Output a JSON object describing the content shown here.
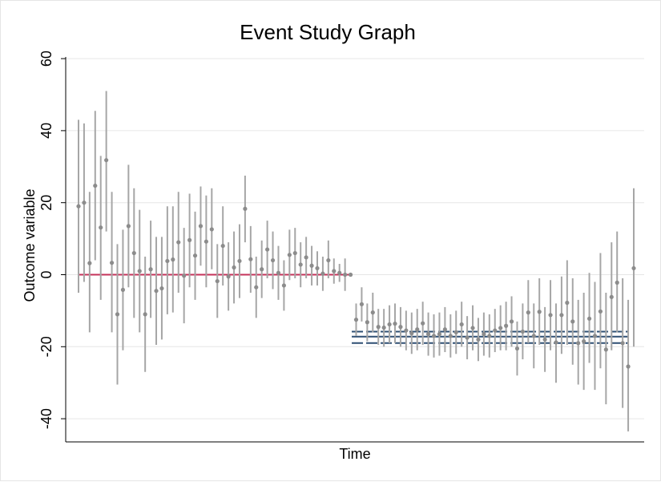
{
  "chart_data": {
    "type": "scatter",
    "title": "Event Study Graph",
    "xlabel": "Time",
    "ylabel": "Outcome variable",
    "ylim": [
      -46,
      62
    ],
    "yticks": [
      60,
      40,
      20,
      0,
      -20,
      -40
    ],
    "xtick_labels_shown": false,
    "grid": true,
    "legend": "none",
    "colors": {
      "points": "#8c8c8c",
      "ci": "#a6a6a6",
      "pre_line": "#c4325a",
      "post_bands": "#2e4f73",
      "grid": "#e6e6e6"
    },
    "pre_reference_line": {
      "y": 0,
      "x_from": 1,
      "x_to": 50
    },
    "post_average_lines": {
      "estimate": -17.2,
      "ci": [
        -19.0,
        -15.8
      ],
      "x_from": 50.5,
      "x_to": 101
    },
    "series": [
      {
        "points": [
          {
            "x": 1,
            "y": 19.0,
            "lo": -5,
            "hi": 43
          },
          {
            "x": 2,
            "y": 20.0,
            "lo": -2,
            "hi": 42
          },
          {
            "x": 3,
            "y": 3.2,
            "lo": -16,
            "hi": 23
          },
          {
            "x": 4,
            "y": 24.7,
            "lo": 4,
            "hi": 45.5
          },
          {
            "x": 5,
            "y": 13.1,
            "lo": -7,
            "hi": 33
          },
          {
            "x": 6,
            "y": 31.8,
            "lo": 12,
            "hi": 51
          },
          {
            "x": 7,
            "y": 3.3,
            "lo": -16,
            "hi": 23
          },
          {
            "x": 8,
            "y": -11.0,
            "lo": -30.5,
            "hi": 8.5
          },
          {
            "x": 9,
            "y": -4.2,
            "lo": -21,
            "hi": 12.5
          },
          {
            "x": 10,
            "y": 13.5,
            "lo": -3.5,
            "hi": 30.5
          },
          {
            "x": 11,
            "y": 6.0,
            "lo": -12,
            "hi": 24
          },
          {
            "x": 12,
            "y": 1.0,
            "lo": -16,
            "hi": 18
          },
          {
            "x": 13,
            "y": -11.0,
            "lo": -27,
            "hi": 5
          },
          {
            "x": 14,
            "y": 1.5,
            "lo": -12,
            "hi": 15
          },
          {
            "x": 15,
            "y": -4.5,
            "lo": -19.5,
            "hi": 10.5
          },
          {
            "x": 16,
            "y": -3.8,
            "lo": -18,
            "hi": 10.5
          },
          {
            "x": 17,
            "y": 3.8,
            "lo": -11,
            "hi": 19
          },
          {
            "x": 18,
            "y": 4.2,
            "lo": -10.5,
            "hi": 19
          },
          {
            "x": 19,
            "y": 9.0,
            "lo": -5,
            "hi": 23
          },
          {
            "x": 20,
            "y": -0.3,
            "lo": -13.5,
            "hi": 13
          },
          {
            "x": 21,
            "y": 9.6,
            "lo": -3.5,
            "hi": 22.5
          },
          {
            "x": 22,
            "y": 5.3,
            "lo": -7,
            "hi": 17.5
          },
          {
            "x": 23,
            "y": 13.5,
            "lo": 2.5,
            "hi": 24.5
          },
          {
            "x": 24,
            "y": 9.2,
            "lo": -3.5,
            "hi": 22
          },
          {
            "x": 25,
            "y": 12.6,
            "lo": 1.5,
            "hi": 24
          },
          {
            "x": 26,
            "y": -1.8,
            "lo": -12,
            "hi": 8.5
          },
          {
            "x": 27,
            "y": 8.0,
            "lo": -3,
            "hi": 19
          },
          {
            "x": 28,
            "y": -0.5,
            "lo": -10,
            "hi": 9
          },
          {
            "x": 29,
            "y": 2.0,
            "lo": -8,
            "hi": 12
          },
          {
            "x": 30,
            "y": 3.8,
            "lo": -6.5,
            "hi": 14
          },
          {
            "x": 31,
            "y": 18.3,
            "lo": 9,
            "hi": 27.5
          },
          {
            "x": 32,
            "y": 4.3,
            "lo": -5,
            "hi": 13.5
          },
          {
            "x": 33,
            "y": -3.5,
            "lo": -12,
            "hi": 5
          },
          {
            "x": 34,
            "y": 1.5,
            "lo": -6.5,
            "hi": 9.5
          },
          {
            "x": 35,
            "y": 7.0,
            "lo": -1,
            "hi": 15
          },
          {
            "x": 36,
            "y": 4.0,
            "lo": -4,
            "hi": 12
          },
          {
            "x": 37,
            "y": 0.5,
            "lo": -7,
            "hi": 8
          },
          {
            "x": 38,
            "y": -3.0,
            "lo": -10,
            "hi": 4
          },
          {
            "x": 39,
            "y": 5.5,
            "lo": -1.5,
            "hi": 12.5
          },
          {
            "x": 40,
            "y": 6.0,
            "lo": -1,
            "hi": 13
          },
          {
            "x": 41,
            "y": 2.8,
            "lo": -3.5,
            "hi": 9
          },
          {
            "x": 42,
            "y": 4.8,
            "lo": -1,
            "hi": 10.5
          },
          {
            "x": 43,
            "y": 2.5,
            "lo": -3,
            "hi": 8
          },
          {
            "x": 44,
            "y": 1.8,
            "lo": -3,
            "hi": 6.5
          },
          {
            "x": 45,
            "y": 0.3,
            "lo": -4.5,
            "hi": 5
          },
          {
            "x": 46,
            "y": 4.0,
            "lo": -1,
            "hi": 9.5
          },
          {
            "x": 47,
            "y": 1.0,
            "lo": -2.5,
            "hi": 4.5
          },
          {
            "x": 48,
            "y": 0.5,
            "lo": -2,
            "hi": 3
          },
          {
            "x": 49,
            "y": 0.0,
            "lo": -4.5,
            "hi": 4.5
          },
          {
            "x": 50,
            "y": 0.0,
            "lo": 0,
            "hi": 0
          },
          {
            "x": 51,
            "y": -12.5,
            "lo": -17,
            "hi": -8
          },
          {
            "x": 52,
            "y": -8.2,
            "lo": -13,
            "hi": -3.5
          },
          {
            "x": 53,
            "y": -13.2,
            "lo": -18.5,
            "hi": -8
          },
          {
            "x": 54,
            "y": -10.5,
            "lo": -16,
            "hi": -5
          },
          {
            "x": 55,
            "y": -14.5,
            "lo": -19.5,
            "hi": -9.5
          },
          {
            "x": 56,
            "y": -14.7,
            "lo": -20,
            "hi": -9.5
          },
          {
            "x": 57,
            "y": -13.8,
            "lo": -19,
            "hi": -8.5
          },
          {
            "x": 58,
            "y": -13.6,
            "lo": -19,
            "hi": -8
          },
          {
            "x": 59,
            "y": -14.5,
            "lo": -20,
            "hi": -9
          },
          {
            "x": 60,
            "y": -15.5,
            "lo": -21,
            "hi": -10
          },
          {
            "x": 61,
            "y": -16.3,
            "lo": -22,
            "hi": -10.5
          },
          {
            "x": 62,
            "y": -15.2,
            "lo": -21,
            "hi": -9.5
          },
          {
            "x": 63,
            "y": -13.5,
            "lo": -19.5,
            "hi": -7.5
          },
          {
            "x": 64,
            "y": -16.5,
            "lo": -22.5,
            "hi": -10.5
          },
          {
            "x": 65,
            "y": -17.0,
            "lo": -23,
            "hi": -11
          },
          {
            "x": 66,
            "y": -16.5,
            "lo": -22.5,
            "hi": -10.5
          },
          {
            "x": 67,
            "y": -15.2,
            "lo": -21.5,
            "hi": -9
          },
          {
            "x": 68,
            "y": -17.0,
            "lo": -23,
            "hi": -11
          },
          {
            "x": 69,
            "y": -16.0,
            "lo": -22,
            "hi": -10
          },
          {
            "x": 70,
            "y": -13.8,
            "lo": -20,
            "hi": -7.5
          },
          {
            "x": 71,
            "y": -17.5,
            "lo": -23.5,
            "hi": -11.5
          },
          {
            "x": 72,
            "y": -14.8,
            "lo": -21,
            "hi": -8.5
          },
          {
            "x": 73,
            "y": -18.0,
            "lo": -24,
            "hi": -12
          },
          {
            "x": 74,
            "y": -16.5,
            "lo": -22.5,
            "hi": -10.5
          },
          {
            "x": 75,
            "y": -17.0,
            "lo": -23,
            "hi": -11
          },
          {
            "x": 76,
            "y": -15.5,
            "lo": -21.5,
            "hi": -9.5
          },
          {
            "x": 77,
            "y": -14.8,
            "lo": -21,
            "hi": -8.5
          },
          {
            "x": 78,
            "y": -14.2,
            "lo": -21,
            "hi": -7.5
          },
          {
            "x": 79,
            "y": -13.0,
            "lo": -20,
            "hi": -6
          },
          {
            "x": 80,
            "y": -20.5,
            "lo": -28,
            "hi": -13
          },
          {
            "x": 81,
            "y": -15.8,
            "lo": -23.5,
            "hi": -8
          },
          {
            "x": 82,
            "y": -10.5,
            "lo": -19,
            "hi": -1.5
          },
          {
            "x": 83,
            "y": -17.0,
            "lo": -26,
            "hi": -8
          },
          {
            "x": 84,
            "y": -10.3,
            "lo": -19.5,
            "hi": -1
          },
          {
            "x": 85,
            "y": -18.0,
            "lo": -27,
            "hi": -9
          },
          {
            "x": 86,
            "y": -11.2,
            "lo": -21,
            "hi": -1.5
          },
          {
            "x": 87,
            "y": -18.8,
            "lo": -30,
            "hi": -8
          },
          {
            "x": 88,
            "y": -11.2,
            "lo": -22,
            "hi": -0.5
          },
          {
            "x": 89,
            "y": -7.8,
            "lo": -19.5,
            "hi": 4
          },
          {
            "x": 90,
            "y": -13.0,
            "lo": -25,
            "hi": -1
          },
          {
            "x": 91,
            "y": -19.0,
            "lo": -30.5,
            "hi": -7
          },
          {
            "x": 92,
            "y": -18.5,
            "lo": -32,
            "hi": -5
          },
          {
            "x": 93,
            "y": -12.2,
            "lo": -24.5,
            "hi": 0.5
          },
          {
            "x": 94,
            "y": -17.0,
            "lo": -32,
            "hi": -2
          },
          {
            "x": 95,
            "y": -10.2,
            "lo": -26,
            "hi": 6
          },
          {
            "x": 96,
            "y": -20.8,
            "lo": -36,
            "hi": -5
          },
          {
            "x": 97,
            "y": -6.2,
            "lo": -21,
            "hi": 9
          },
          {
            "x": 98,
            "y": -2.2,
            "lo": -16,
            "hi": 12
          },
          {
            "x": 99,
            "y": -19.0,
            "lo": -37,
            "hi": -1
          },
          {
            "x": 100,
            "y": -25.5,
            "lo": -43.5,
            "hi": -7
          },
          {
            "x": 101,
            "y": 1.8,
            "lo": -20,
            "hi": 24
          }
        ]
      }
    ]
  }
}
